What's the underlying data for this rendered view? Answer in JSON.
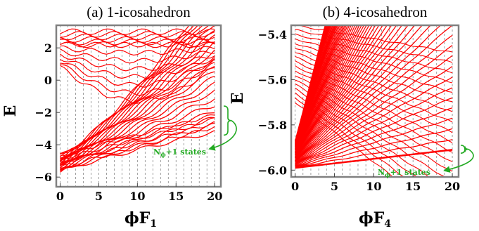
{
  "colors": {
    "curves": "#ff0000",
    "annotation": "#22aa22",
    "frame": "#808080",
    "gridlines": "#888888"
  },
  "chart_data": [
    {
      "type": "line",
      "title": "(a) 1-icosahedron",
      "xlabel": "ϕF",
      "xlabel_sub": "1",
      "ylabel": "E",
      "xlim": [
        -0.5,
        20.8
      ],
      "ylim": [
        -6.6,
        3.4
      ],
      "xticks": [
        0,
        5,
        10,
        15,
        20
      ],
      "yticks": [
        -6,
        -4,
        -2,
        0,
        2
      ],
      "ytick_labels": [
        "−6",
        "−4",
        "−2",
        "0",
        "2"
      ],
      "flux_gridlines": "dashed vertical line at every integer flux value 0–20",
      "spectrum": "dense family of red energy levels vs flux; levels fan out from E≈−5.7 at ϕF=0 and a cluster of bands lies between E≈2.2 and E≈3.0",
      "ground_band": {
        "x": [
          0,
          20
        ],
        "y_start": -5.7,
        "y_end": -3.2
      },
      "upper_band": {
        "x": [
          0,
          20
        ],
        "y_range": [
          2.2,
          3.0
        ]
      },
      "annotation": "N<sub>ϕ</sub>+1 states",
      "annotation_plain": "Nϕ+1 states",
      "bracket_range": [
        -3.4,
        -1.6
      ]
    },
    {
      "type": "line",
      "title": "(b) 4-icosahedron",
      "xlabel": "ϕF",
      "xlabel_sub": "4",
      "ylabel": "E",
      "xlim": [
        -0.5,
        20.8
      ],
      "ylim": [
        -6.03,
        -5.36
      ],
      "xticks": [
        0,
        5,
        10,
        15,
        20
      ],
      "yticks": [
        -6.0,
        -5.8,
        -5.6,
        -5.4
      ],
      "ytick_labels": [
        "−6.0",
        "−5.8",
        "−5.6",
        "−5.4"
      ],
      "flux_gridlines": "dashed vertical line at every integer flux value 0–20",
      "spectrum": "Landau-level fan of red lines spreading upward from E≈−5.99 at ϕF=0",
      "lowest_level": {
        "x": [
          0,
          20
        ],
        "y_start": -5.99,
        "y_end": -5.91
      },
      "annotation": "N<sub>ϕ</sub>+1 states",
      "annotation_plain": "Nϕ+1 states",
      "bracket_range": [
        -5.925,
        -5.89
      ]
    }
  ]
}
